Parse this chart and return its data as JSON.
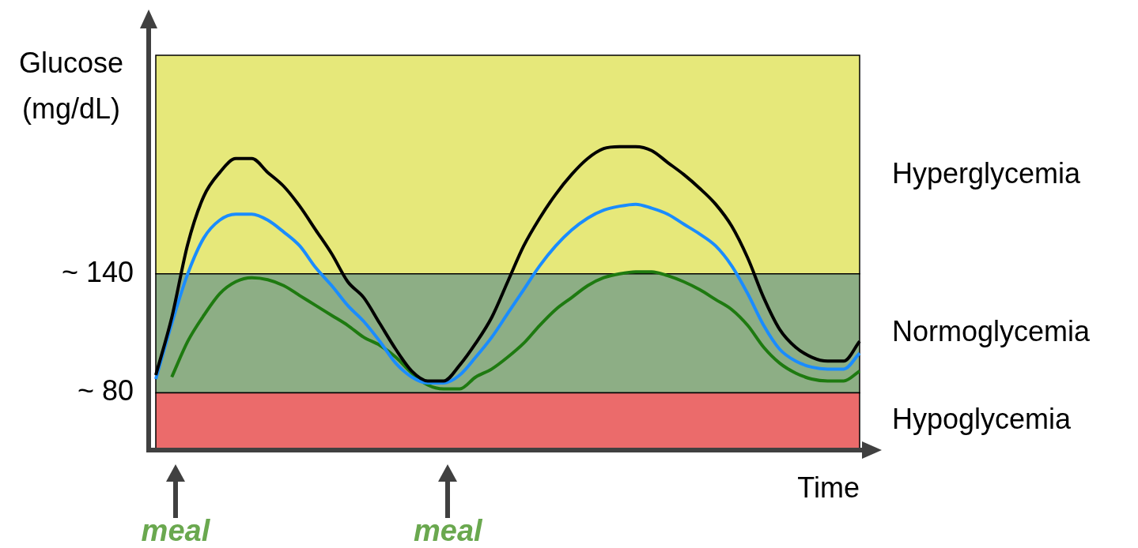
{
  "chart_data": {
    "type": "line",
    "ylabel": "Glucose (mg/dL)",
    "xlabel": "Time",
    "categories": [
      null,
      null,
      null,
      null,
      null,
      null,
      null,
      null,
      null,
      null,
      null,
      null,
      null,
      null,
      null,
      null,
      null,
      null,
      null,
      null,
      null,
      null,
      null,
      null,
      null,
      null,
      null,
      null,
      null,
      null,
      null,
      null,
      null,
      null,
      null,
      null,
      null,
      null,
      null,
      null,
      null,
      null,
      null,
      null,
      null
    ],
    "series": [
      {
        "color": "#000000",
        "values": [
          89,
          118,
          155,
          179,
          191,
          198,
          198,
          191,
          184,
          174,
          162,
          150,
          136,
          128,
          115,
          102,
          91,
          86,
          86,
          94,
          105,
          118,
          136,
          154,
          168,
          180,
          190,
          198,
          203,
          204,
          204,
          202,
          196,
          190,
          183,
          175,
          164,
          148,
          128,
          112,
          103,
          98,
          96,
          96,
          106
        ]
      },
      {
        "color": "#1a8cff",
        "values": [
          87,
          115,
          140,
          158,
          167,
          170,
          170,
          167,
          161,
          154,
          143,
          134,
          124,
          116,
          106,
          95,
          88,
          85,
          85,
          89,
          98,
          108,
          120,
          132,
          144,
          154,
          162,
          168,
          172,
          174,
          175,
          173,
          170,
          165,
          160,
          154,
          144,
          130,
          114,
          102,
          96,
          93,
          92,
          92,
          100
        ]
      },
      {
        "color": "#1e7a10",
        "values": [
          null,
          88,
          106,
          119,
          130,
          136,
          138,
          137,
          134,
          129,
          124,
          119,
          114,
          108,
          104,
          98,
          90,
          84,
          82,
          82,
          88,
          92,
          98,
          105,
          114,
          122,
          128,
          134,
          138,
          140,
          141,
          141,
          139,
          136,
          132,
          127,
          122,
          114,
          103,
          95,
          90,
          87,
          86,
          86,
          91
        ]
      }
    ],
    "ylim": [
      52,
      250
    ],
    "yticks": [
      {
        "value": 140,
        "label": "~ 140"
      },
      {
        "value": 80,
        "label": "~ 80"
      }
    ],
    "bands": [
      {
        "axis": "y",
        "from": 140,
        "to": 250,
        "label": "Hyperglycemia",
        "color": "#e6e87a"
      },
      {
        "axis": "y",
        "from": 80,
        "to": 140,
        "label": "Normoglycemia",
        "color": "#8dae85"
      },
      {
        "axis": "y",
        "from": 52,
        "to": 80,
        "label": "Hypoglycemia",
        "color": "#eb6b6b"
      }
    ],
    "annotations": [
      "meal",
      "meal"
    ],
    "grid": false,
    "legend": false,
    "marker": "none",
    "tick_labels": "y"
  }
}
